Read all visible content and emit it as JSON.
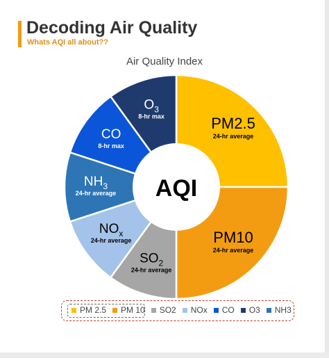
{
  "header": {
    "title": "Decoding Air Quality",
    "subtitle": "Whats AQI all about??",
    "accent_color": "#f39c12"
  },
  "chart_data": {
    "type": "pie",
    "title": "Air Quality Index",
    "center_label": "AQI",
    "slices": [
      {
        "name": "PM2.5",
        "main": "PM2.5",
        "sub": "",
        "note": "24-hr average",
        "value": 25,
        "color": "#ffc000"
      },
      {
        "name": "PM10",
        "main": "PM10",
        "sub": "",
        "note": "24-hr average",
        "value": 25,
        "color": "#f39c12"
      },
      {
        "name": "SO2",
        "main": "SO",
        "sub": "2",
        "note": "24-hr average",
        "value": 10,
        "color": "#a6a6a6"
      },
      {
        "name": "NOx",
        "main": "NO",
        "sub": "x",
        "note": "24-hr average",
        "value": 10,
        "color": "#a4c3ea"
      },
      {
        "name": "NH3",
        "main": "NH",
        "sub": "3",
        "note": "24-hr average",
        "value": 10,
        "color": "#2e75b6"
      },
      {
        "name": "CO",
        "main": "CO",
        "sub": "",
        "note": "8-hr max",
        "value": 10,
        "color": "#0b55d9"
      },
      {
        "name": "O3",
        "main": "O",
        "sub": "3",
        "note": "8-hr max",
        "value": 10,
        "color": "#1f3b6e"
      }
    ],
    "legend": [
      {
        "label": "PM 2.5",
        "color": "#ffc000"
      },
      {
        "label": "PM 10",
        "color": "#f39c12"
      },
      {
        "label": "SO2",
        "color": "#a6a6a6"
      },
      {
        "label": "NOx",
        "color": "#a4c3ea"
      },
      {
        "label": "CO",
        "color": "#0b55d9"
      },
      {
        "label": "O3",
        "color": "#1f3b6e"
      },
      {
        "label": "NH3",
        "color": "#2e75b6"
      }
    ]
  }
}
